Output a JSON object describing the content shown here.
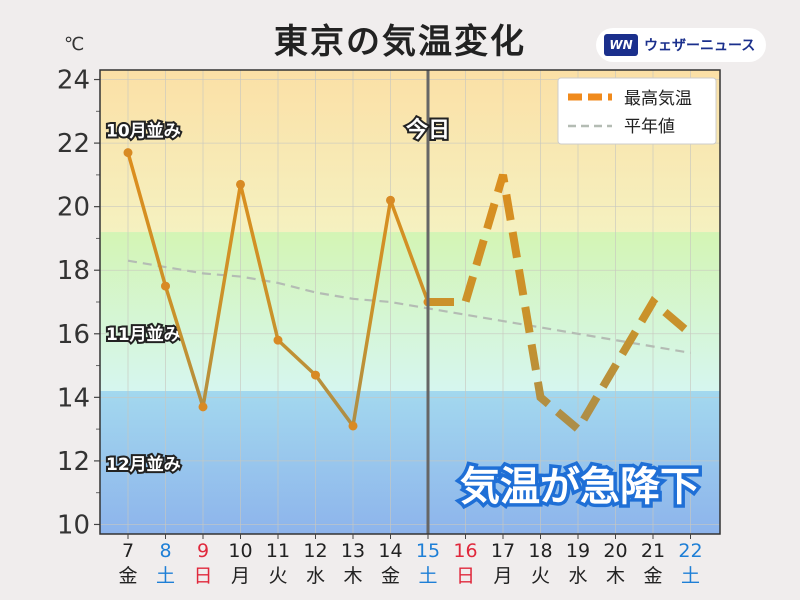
{
  "header": {
    "title": "東京の気温変化",
    "unit": "℃",
    "brand": "ウェザーニュース",
    "brand_mark": "WN"
  },
  "chart_data": {
    "type": "line",
    "title": "東京の気温変化",
    "ylabel": "℃",
    "ylim": [
      10,
      24
    ],
    "y_ticks": [
      10,
      12,
      14,
      16,
      18,
      20,
      22,
      24
    ],
    "grid": true,
    "legend_position": "top-right",
    "categories": [
      "7",
      "8",
      "9",
      "10",
      "11",
      "12",
      "13",
      "14",
      "15",
      "16",
      "17",
      "18",
      "19",
      "20",
      "21",
      "22"
    ],
    "weekdays": [
      "金",
      "土",
      "日",
      "月",
      "火",
      "水",
      "木",
      "金",
      "土",
      "日",
      "月",
      "火",
      "水",
      "木",
      "金",
      "土"
    ],
    "weekday_colors": [
      "#222222",
      "#1e7fd6",
      "#e0283c",
      "#222222",
      "#222222",
      "#222222",
      "#222222",
      "#222222",
      "#1e7fd6",
      "#e0283c",
      "#222222",
      "#222222",
      "#222222",
      "#222222",
      "#222222",
      "#1e7fd6"
    ],
    "series": [
      {
        "name": "最高気温",
        "observed": [
          21.7,
          17.5,
          13.7,
          20.7,
          15.8,
          14.7,
          13.1,
          20.2,
          17.0
        ],
        "forecast": [
          17.0,
          17.0,
          21.0,
          14.0,
          13.0,
          15.0,
          17.0,
          16.0
        ],
        "forecast_start_index": 8,
        "color": "#f08a1c"
      },
      {
        "name": "平年値",
        "values": [
          18.3,
          18.1,
          17.9,
          17.8,
          17.6,
          17.3,
          17.1,
          17.0,
          16.8,
          16.6,
          16.4,
          16.2,
          16.0,
          15.8,
          15.6,
          15.4
        ],
        "color": "#b4bcb4"
      }
    ],
    "bands": [
      {
        "label": "10月並み",
        "from": 19.2,
        "to": 24.3,
        "color_top": "#fbe0a6",
        "color_bottom": "#f5f1c0"
      },
      {
        "label": "11月並み",
        "from": 14.2,
        "to": 19.2,
        "color_top": "#d4f5b4",
        "color_bottom": "#d6f6ef"
      },
      {
        "label": "12月並み",
        "from": 9.7,
        "to": 14.2,
        "color_top": "#a3d8ee",
        "color_bottom": "#8db4ec"
      }
    ],
    "today_label": "今日",
    "today_index": 8,
    "annotation": "気温が急降下"
  }
}
